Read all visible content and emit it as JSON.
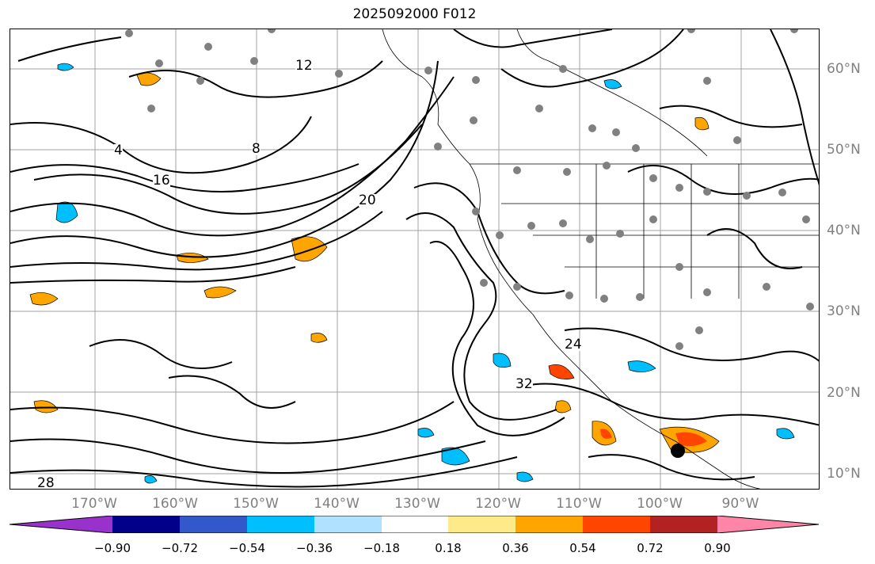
{
  "title": "2025092000 F012",
  "lat_labels": [
    "60°N",
    "50°N",
    "40°N",
    "30°N",
    "20°N",
    "10°N"
  ],
  "lon_labels": [
    "170°W",
    "160°W",
    "150°W",
    "140°W",
    "130°W",
    "120°W",
    "110°W",
    "100°W",
    "90°W"
  ],
  "contour_labels": [
    "4",
    "8",
    "12",
    "16",
    "20",
    "24",
    "28",
    "32"
  ],
  "colorbar": {
    "ticks": [
      "−0.90",
      "−0.72",
      "−0.54",
      "−0.36",
      "−0.18",
      "0.18",
      "0.36",
      "0.54",
      "0.72",
      "0.90"
    ],
    "colors": [
      "#9932cc",
      "#00008b",
      "#3358cc",
      "#00bfff",
      "#b0e2ff",
      "#ffffff",
      "#ffea8a",
      "#ffa500",
      "#ff4500",
      "#b22222",
      "#ff85a8"
    ]
  }
}
